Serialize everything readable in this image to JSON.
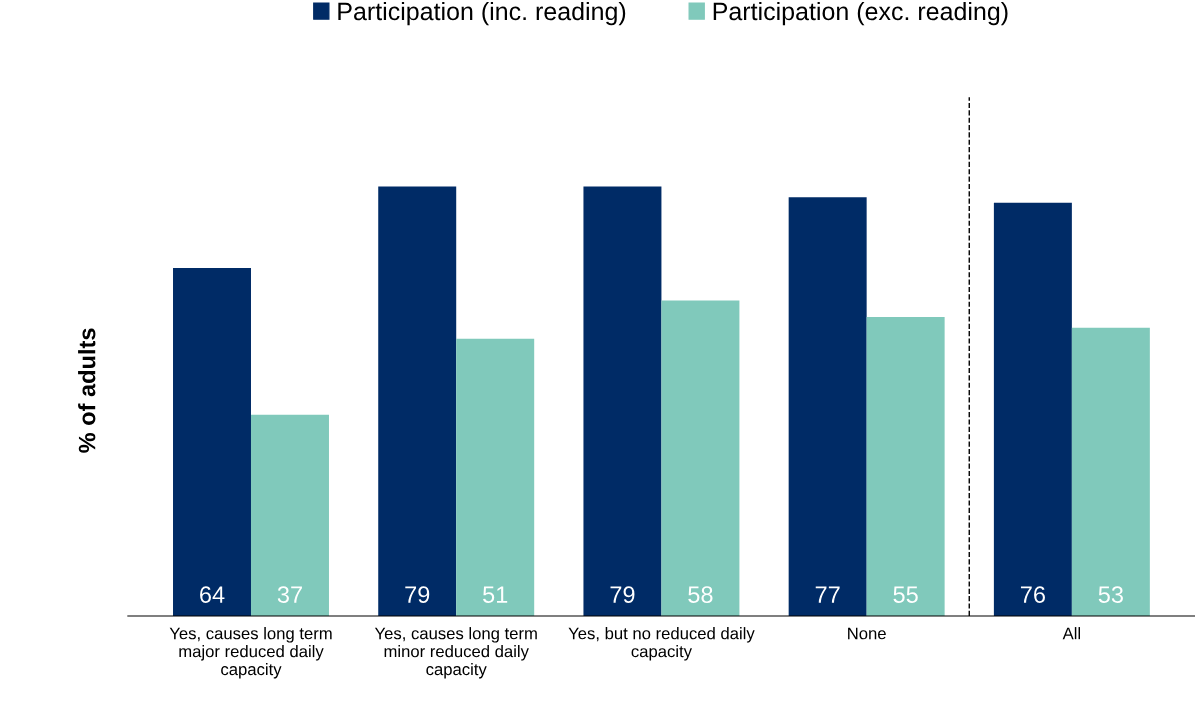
{
  "chart_data": {
    "type": "bar",
    "ylabel": "% of adults",
    "categories": [
      "Yes, causes long term major reduced daily capacity",
      "Yes, causes long term minor reduced daily capacity",
      "Yes, but no reduced daily capacity",
      "None",
      "All"
    ],
    "series": [
      {
        "name": "Participation (inc. reading)",
        "color": "#002b66",
        "values": [
          64,
          79,
          79,
          77,
          76
        ]
      },
      {
        "name": "Participation (exc. reading)",
        "color": "#80c9bb",
        "values": [
          37,
          51,
          58,
          55,
          53
        ]
      }
    ],
    "data_labels": true,
    "legend": "top",
    "grid": false,
    "tick_labels": "x"
  }
}
